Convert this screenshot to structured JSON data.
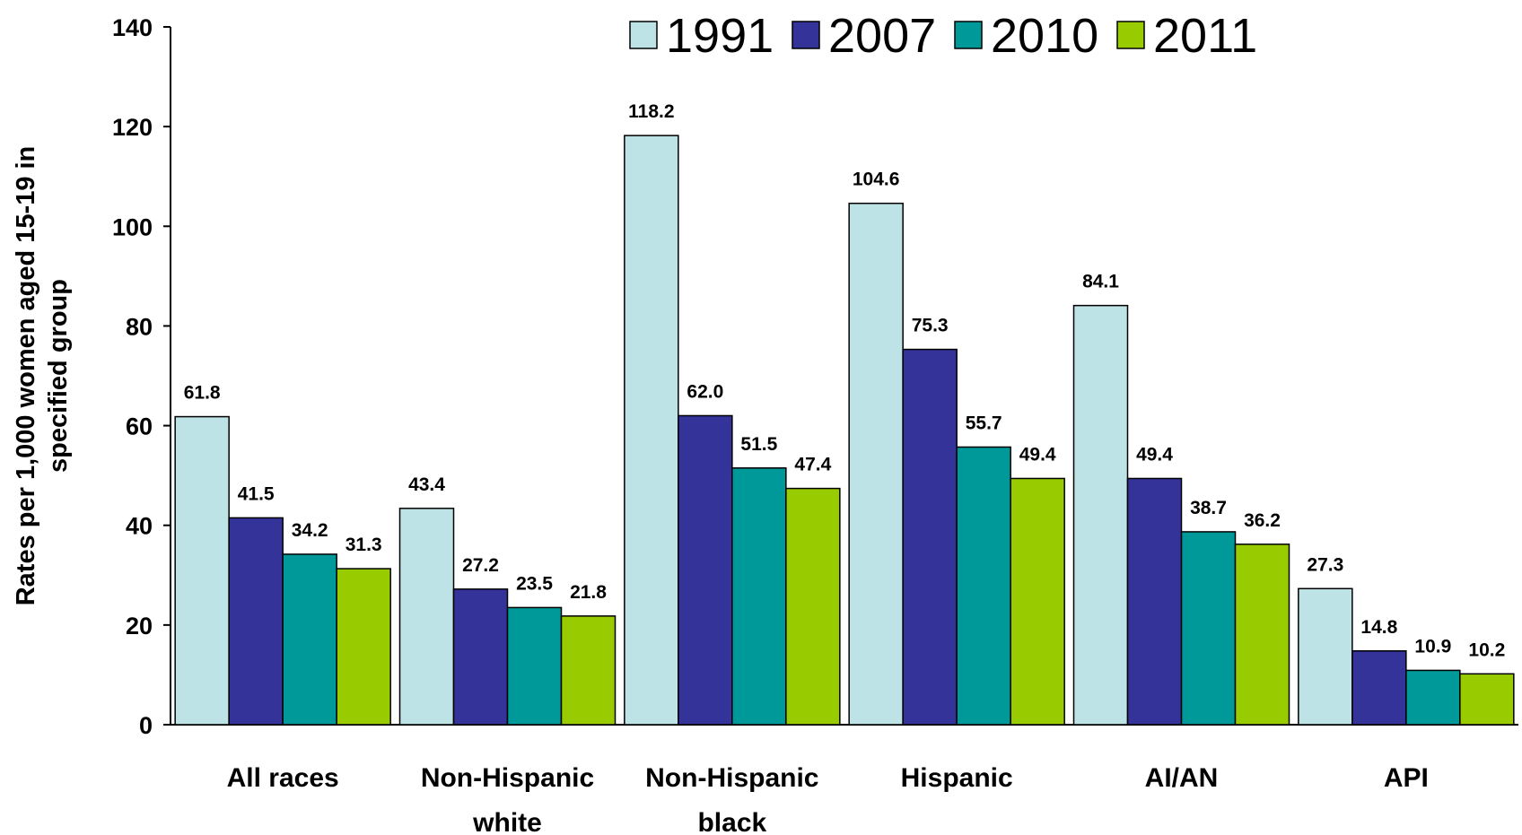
{
  "chart_data": {
    "type": "bar",
    "ylabel_lines": [
      "Rates per 1,000 women aged 15-19 in",
      "specified group"
    ],
    "ylim": [
      0,
      140
    ],
    "yticks": [
      0,
      20,
      40,
      60,
      80,
      100,
      120,
      140
    ],
    "grid": false,
    "legend_position": "top",
    "categories": [
      [
        "All races"
      ],
      [
        "Non-Hispanic",
        "white"
      ],
      [
        "Non-Hispanic",
        "black"
      ],
      [
        "Hispanic"
      ],
      [
        "AI/AN"
      ],
      [
        "API"
      ]
    ],
    "series": [
      {
        "name": "1991",
        "color": "#BDE3E6",
        "values": [
          61.8,
          43.4,
          118.2,
          104.6,
          84.1,
          27.3
        ],
        "labels": [
          "61.8",
          "43.4",
          "118.2",
          "104.6",
          "84.1",
          "27.3"
        ]
      },
      {
        "name": "2007",
        "color": "#333399",
        "values": [
          41.5,
          27.2,
          62.0,
          75.3,
          49.4,
          14.8
        ],
        "labels": [
          "41.5",
          "27.2",
          "62.0",
          "75.3",
          "49.4",
          "14.8"
        ]
      },
      {
        "name": "2010",
        "color": "#009999",
        "values": [
          34.2,
          23.5,
          51.5,
          55.7,
          38.7,
          10.9
        ],
        "labels": [
          "34.2",
          "23.5",
          "51.5",
          "55.7",
          "38.7",
          "10.9"
        ]
      },
      {
        "name": "2011",
        "color": "#99CC00",
        "values": [
          31.3,
          21.8,
          47.4,
          49.4,
          36.2,
          10.2
        ],
        "labels": [
          "31.3",
          "21.8",
          "47.4",
          "49.4",
          "36.2",
          "10.2"
        ]
      }
    ]
  }
}
